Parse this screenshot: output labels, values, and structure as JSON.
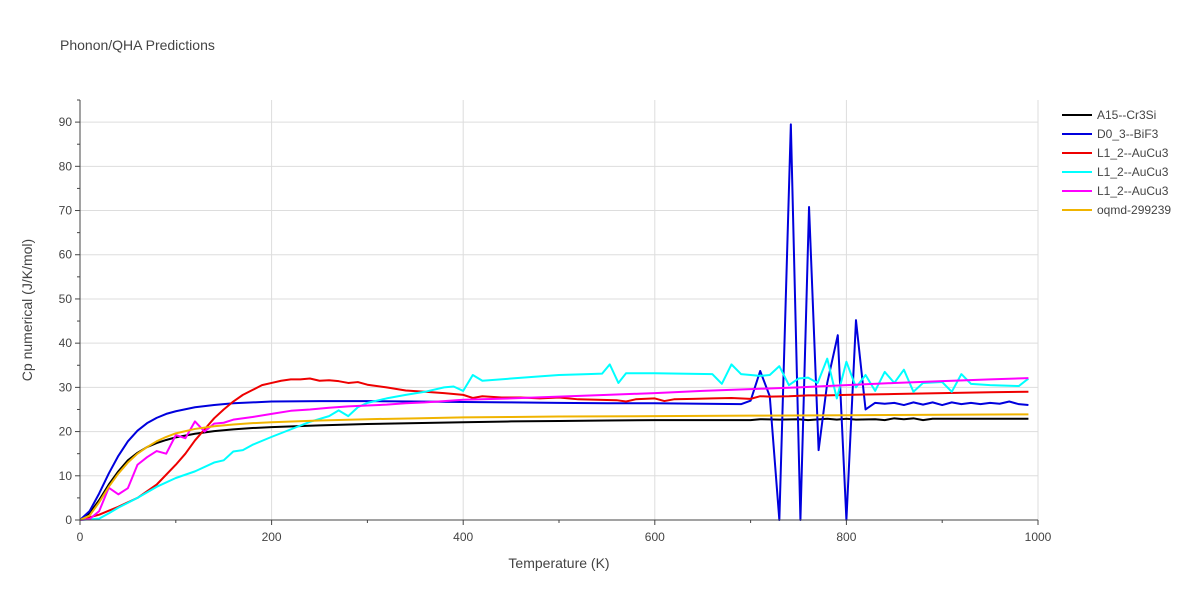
{
  "chart_data": {
    "type": "line",
    "title": "Phonon/QHA Predictions",
    "xlabel": "Temperature (K)",
    "ylabel": "Cp numerical (J/K/mol)",
    "xlim": [
      0,
      1000
    ],
    "ylim": [
      0,
      95
    ],
    "xticks": [
      0,
      200,
      400,
      600,
      800,
      1000
    ],
    "yticks": [
      0,
      10,
      20,
      30,
      40,
      50,
      60,
      70,
      80,
      90
    ],
    "grid": true,
    "legend_position": "right",
    "series": [
      {
        "name": "A15--Cr3Si",
        "color": "#000000",
        "points": [
          [
            0,
            0
          ],
          [
            10,
            1.5
          ],
          [
            20,
            4.5
          ],
          [
            30,
            8
          ],
          [
            40,
            11
          ],
          [
            50,
            13.5
          ],
          [
            60,
            15.2
          ],
          [
            70,
            16.5
          ],
          [
            80,
            17.4
          ],
          [
            90,
            18.1
          ],
          [
            100,
            18.7
          ],
          [
            120,
            19.5
          ],
          [
            140,
            20.1
          ],
          [
            160,
            20.5
          ],
          [
            180,
            20.8
          ],
          [
            200,
            21.0
          ],
          [
            250,
            21.4
          ],
          [
            300,
            21.7
          ],
          [
            350,
            21.9
          ],
          [
            400,
            22.1
          ],
          [
            450,
            22.3
          ],
          [
            500,
            22.4
          ],
          [
            550,
            22.5
          ],
          [
            600,
            22.6
          ],
          [
            650,
            22.6
          ],
          [
            700,
            22.6
          ],
          [
            710,
            22.8
          ],
          [
            730,
            22.7
          ],
          [
            750,
            22.8
          ],
          [
            760,
            22.6
          ],
          [
            780,
            22.9
          ],
          [
            790,
            22.7
          ],
          [
            800,
            22.9
          ],
          [
            810,
            22.7
          ],
          [
            830,
            22.8
          ],
          [
            840,
            22.6
          ],
          [
            850,
            23.0
          ],
          [
            860,
            22.8
          ],
          [
            870,
            23.0
          ],
          [
            880,
            22.6
          ],
          [
            890,
            22.9
          ],
          [
            900,
            22.9
          ],
          [
            950,
            22.9
          ],
          [
            990,
            22.9
          ]
        ]
      },
      {
        "name": "D0_3--BiF3",
        "color": "#0000dd",
        "points": [
          [
            0,
            0
          ],
          [
            10,
            2
          ],
          [
            20,
            6
          ],
          [
            30,
            10.5
          ],
          [
            40,
            14.5
          ],
          [
            50,
            17.8
          ],
          [
            60,
            20.2
          ],
          [
            70,
            21.9
          ],
          [
            80,
            23.1
          ],
          [
            90,
            24.0
          ],
          [
            100,
            24.6
          ],
          [
            120,
            25.5
          ],
          [
            140,
            26.0
          ],
          [
            160,
            26.4
          ],
          [
            180,
            26.6
          ],
          [
            200,
            26.8
          ],
          [
            250,
            26.9
          ],
          [
            300,
            26.9
          ],
          [
            350,
            26.8
          ],
          [
            400,
            26.7
          ],
          [
            450,
            26.6
          ],
          [
            500,
            26.5
          ],
          [
            550,
            26.4
          ],
          [
            600,
            26.4
          ],
          [
            650,
            26.3
          ],
          [
            690,
            26.2
          ],
          [
            700,
            27.0
          ],
          [
            710,
            33.7
          ],
          [
            720,
            28.0
          ],
          [
            730,
            0
          ],
          [
            742,
            89.5
          ],
          [
            752,
            0
          ],
          [
            761,
            70.8
          ],
          [
            771,
            15.8
          ],
          [
            780,
            31.0
          ],
          [
            791,
            41.8
          ],
          [
            800,
            0
          ],
          [
            810,
            45.2
          ],
          [
            820,
            25.0
          ],
          [
            830,
            26.5
          ],
          [
            840,
            26.3
          ],
          [
            850,
            26.5
          ],
          [
            860,
            26.0
          ],
          [
            870,
            26.6
          ],
          [
            880,
            26.1
          ],
          [
            890,
            26.6
          ],
          [
            900,
            26.0
          ],
          [
            910,
            26.6
          ],
          [
            920,
            26.2
          ],
          [
            930,
            26.5
          ],
          [
            940,
            26.2
          ],
          [
            950,
            26.5
          ],
          [
            960,
            26.3
          ],
          [
            970,
            26.8
          ],
          [
            980,
            26.2
          ],
          [
            990,
            26.0
          ]
        ]
      },
      {
        "name": "L1_2--AuCu3",
        "color": "#ee0000",
        "points": [
          [
            0,
            0
          ],
          [
            20,
            1.2
          ],
          [
            40,
            3
          ],
          [
            60,
            5
          ],
          [
            80,
            8
          ],
          [
            100,
            12.5
          ],
          [
            110,
            15
          ],
          [
            120,
            18
          ],
          [
            130,
            20.5
          ],
          [
            140,
            23
          ],
          [
            150,
            25
          ],
          [
            160,
            26.8
          ],
          [
            170,
            28.3
          ],
          [
            180,
            29.4
          ],
          [
            190,
            30.5
          ],
          [
            200,
            31
          ],
          [
            210,
            31.5
          ],
          [
            220,
            31.8
          ],
          [
            230,
            31.8
          ],
          [
            240,
            32.0
          ],
          [
            250,
            31.5
          ],
          [
            260,
            31.6
          ],
          [
            270,
            31.4
          ],
          [
            280,
            31.0
          ],
          [
            290,
            31.2
          ],
          [
            300,
            30.6
          ],
          [
            320,
            30.0
          ],
          [
            340,
            29.3
          ],
          [
            360,
            29.0
          ],
          [
            380,
            28.7
          ],
          [
            400,
            28.3
          ],
          [
            410,
            27.6
          ],
          [
            420,
            28.0
          ],
          [
            440,
            27.7
          ],
          [
            460,
            27.7
          ],
          [
            480,
            27.5
          ],
          [
            500,
            27.7
          ],
          [
            520,
            27.3
          ],
          [
            540,
            27.2
          ],
          [
            560,
            27.1
          ],
          [
            570,
            26.8
          ],
          [
            580,
            27.3
          ],
          [
            600,
            27.5
          ],
          [
            610,
            26.9
          ],
          [
            620,
            27.3
          ],
          [
            640,
            27.4
          ],
          [
            660,
            27.5
          ],
          [
            680,
            27.6
          ],
          [
            700,
            27.4
          ],
          [
            710,
            28.0
          ],
          [
            720,
            27.9
          ],
          [
            740,
            28.0
          ],
          [
            760,
            28.2
          ],
          [
            780,
            28.2
          ],
          [
            800,
            28.3
          ],
          [
            820,
            28.4
          ],
          [
            850,
            28.5
          ],
          [
            900,
            28.7
          ],
          [
            950,
            28.9
          ],
          [
            990,
            29.0
          ]
        ]
      },
      {
        "name": "L1_2--AuCu3",
        "color": "#00ffff",
        "points": [
          [
            0,
            0
          ],
          [
            20,
            0.3
          ],
          [
            30,
            1.5
          ],
          [
            40,
            2.8
          ],
          [
            60,
            5
          ],
          [
            80,
            7.5
          ],
          [
            100,
            9.5
          ],
          [
            120,
            11
          ],
          [
            140,
            13
          ],
          [
            150,
            13.5
          ],
          [
            160,
            15.5
          ],
          [
            170,
            15.8
          ],
          [
            180,
            17
          ],
          [
            200,
            18.8
          ],
          [
            220,
            20.5
          ],
          [
            240,
            22.2
          ],
          [
            260,
            23.5
          ],
          [
            270,
            24.8
          ],
          [
            280,
            23.5
          ],
          [
            290,
            25.5
          ],
          [
            300,
            26.5
          ],
          [
            320,
            27.5
          ],
          [
            340,
            28.3
          ],
          [
            360,
            29.0
          ],
          [
            380,
            30.0
          ],
          [
            390,
            30.2
          ],
          [
            400,
            29.2
          ],
          [
            410,
            32.8
          ],
          [
            420,
            31.5
          ],
          [
            450,
            32.0
          ],
          [
            480,
            32.5
          ],
          [
            500,
            32.8
          ],
          [
            530,
            33.0
          ],
          [
            545,
            33.1
          ],
          [
            553,
            35.2
          ],
          [
            562,
            31.0
          ],
          [
            570,
            33.2
          ],
          [
            600,
            33.2
          ],
          [
            660,
            33.0
          ],
          [
            670,
            30.8
          ],
          [
            680,
            35.2
          ],
          [
            690,
            33.0
          ],
          [
            700,
            32.8
          ],
          [
            710,
            32.6
          ],
          [
            720,
            32.8
          ],
          [
            730,
            34.8
          ],
          [
            740,
            30.5
          ],
          [
            750,
            32.0
          ],
          [
            760,
            32.2
          ],
          [
            770,
            31.0
          ],
          [
            780,
            36.5
          ],
          [
            790,
            27.5
          ],
          [
            800,
            35.8
          ],
          [
            810,
            30.0
          ],
          [
            820,
            32.8
          ],
          [
            830,
            29.2
          ],
          [
            840,
            33.5
          ],
          [
            850,
            31.0
          ],
          [
            860,
            34.0
          ],
          [
            870,
            29.0
          ],
          [
            880,
            31.0
          ],
          [
            900,
            31.2
          ],
          [
            910,
            29.0
          ],
          [
            920,
            33.0
          ],
          [
            930,
            30.8
          ],
          [
            950,
            30.5
          ],
          [
            980,
            30.3
          ],
          [
            990,
            32.0
          ]
        ]
      },
      {
        "name": "L1_2--AuCu3",
        "color": "#ff00ff",
        "points": [
          [
            0,
            0
          ],
          [
            10,
            0.2
          ],
          [
            20,
            2
          ],
          [
            30,
            7.3
          ],
          [
            40,
            5.8
          ],
          [
            50,
            7.2
          ],
          [
            60,
            12.5
          ],
          [
            70,
            14.2
          ],
          [
            80,
            15.6
          ],
          [
            90,
            15.0
          ],
          [
            100,
            19.2
          ],
          [
            110,
            18.5
          ],
          [
            120,
            22.3
          ],
          [
            130,
            20.0
          ],
          [
            140,
            21.8
          ],
          [
            150,
            22.0
          ],
          [
            160,
            22.7
          ],
          [
            180,
            23.3
          ],
          [
            200,
            24.0
          ],
          [
            220,
            24.7
          ],
          [
            240,
            25.0
          ],
          [
            260,
            25.4
          ],
          [
            280,
            25.7
          ],
          [
            300,
            25.9
          ],
          [
            320,
            26.1
          ],
          [
            340,
            26.4
          ],
          [
            360,
            26.6
          ],
          [
            380,
            26.9
          ],
          [
            400,
            27.2
          ],
          [
            450,
            27.5
          ],
          [
            500,
            27.9
          ],
          [
            550,
            28.3
          ],
          [
            600,
            28.7
          ],
          [
            650,
            29.2
          ],
          [
            700,
            29.6
          ],
          [
            750,
            30.0
          ],
          [
            800,
            30.5
          ],
          [
            850,
            31.0
          ],
          [
            900,
            31.4
          ],
          [
            950,
            31.8
          ],
          [
            990,
            32.1
          ]
        ]
      },
      {
        "name": "oqmd-299239",
        "color": "#f0b400",
        "points": [
          [
            0,
            0
          ],
          [
            10,
            1
          ],
          [
            20,
            4
          ],
          [
            30,
            7.5
          ],
          [
            40,
            10.5
          ],
          [
            50,
            13
          ],
          [
            60,
            15
          ],
          [
            70,
            16.5
          ],
          [
            80,
            17.8
          ],
          [
            90,
            18.8
          ],
          [
            100,
            19.6
          ],
          [
            120,
            20.6
          ],
          [
            140,
            21.2
          ],
          [
            160,
            21.6
          ],
          [
            180,
            21.9
          ],
          [
            200,
            22.1
          ],
          [
            250,
            22.5
          ],
          [
            300,
            22.8
          ],
          [
            350,
            23.0
          ],
          [
            400,
            23.2
          ],
          [
            450,
            23.3
          ],
          [
            500,
            23.4
          ],
          [
            600,
            23.5
          ],
          [
            700,
            23.6
          ],
          [
            800,
            23.7
          ],
          [
            900,
            23.8
          ],
          [
            990,
            23.9
          ]
        ]
      }
    ]
  }
}
